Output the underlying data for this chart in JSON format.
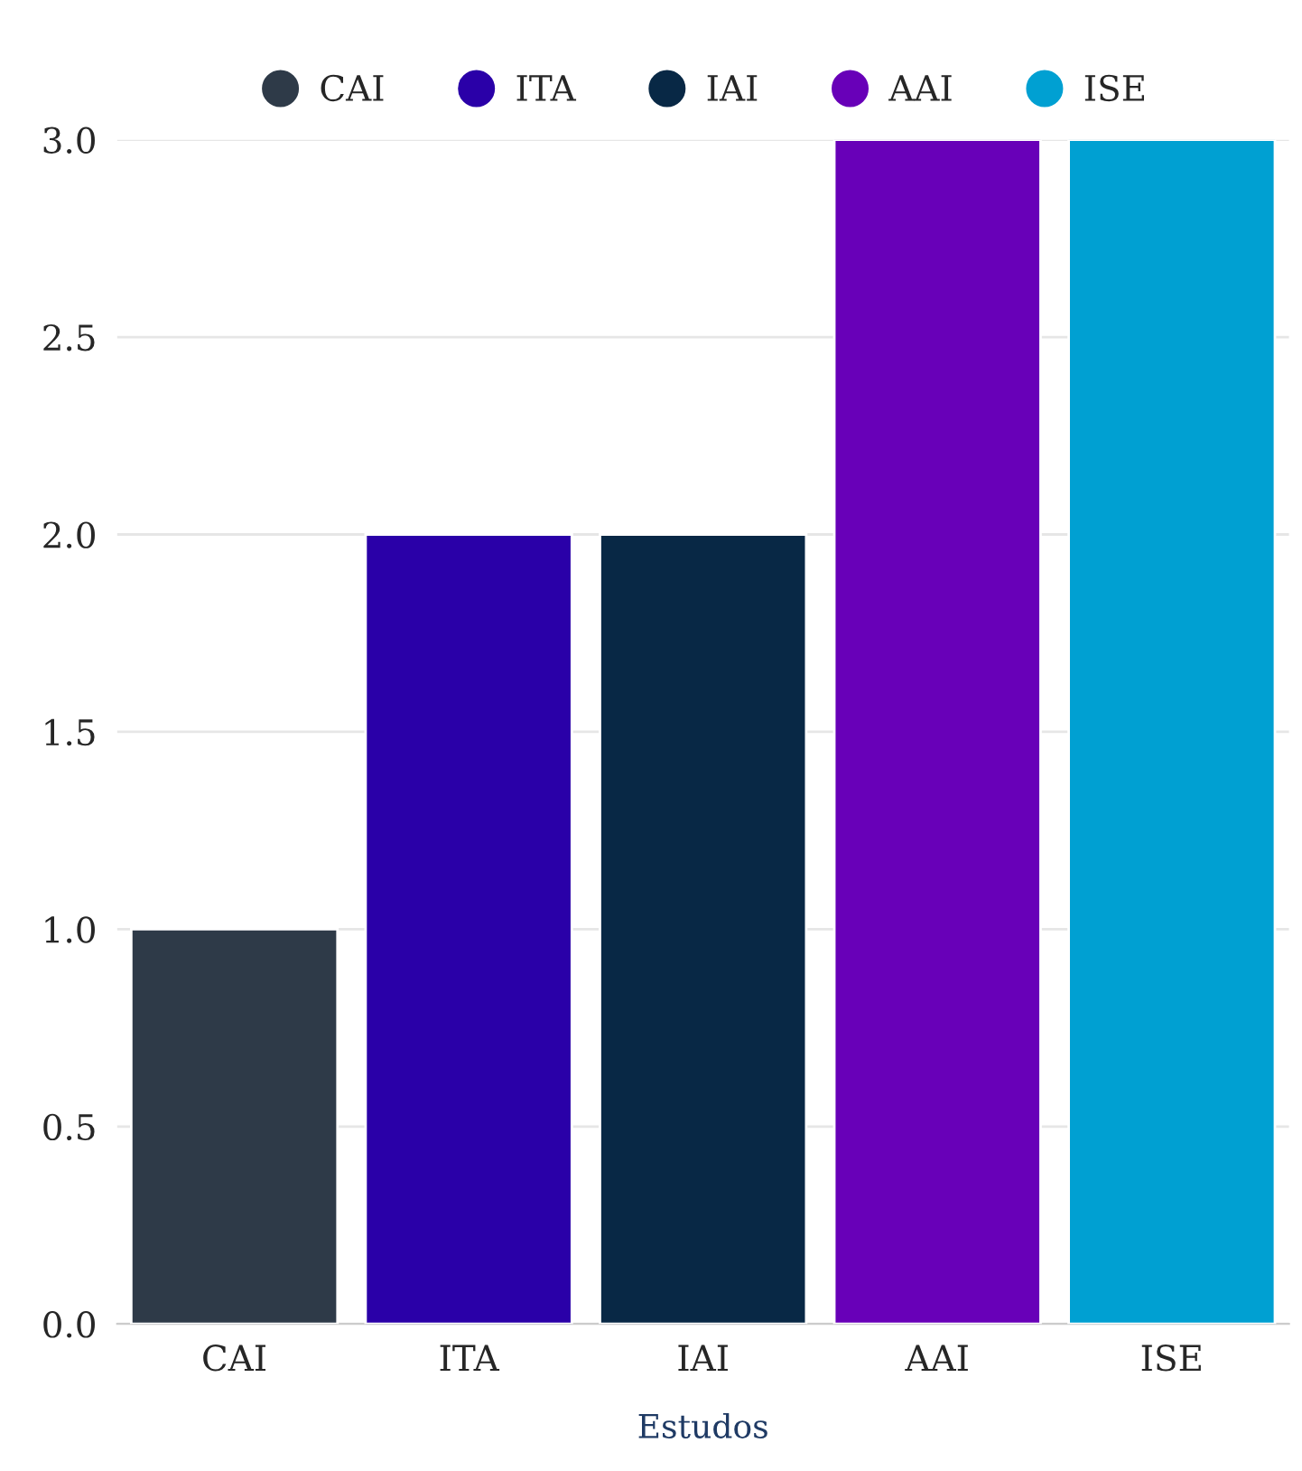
{
  "chart_data": {
    "type": "bar",
    "xlabel": "Estudos",
    "categories": [
      "CAI",
      "ITA",
      "IAI",
      "AAI",
      "ISE"
    ],
    "series": [
      {
        "name": "CAI",
        "color": "#2e3a48",
        "values": [
          1,
          null,
          null,
          null,
          null
        ]
      },
      {
        "name": "ITA",
        "color": "#2a00a8",
        "values": [
          null,
          2,
          null,
          null,
          null
        ]
      },
      {
        "name": "IAI",
        "color": "#082845",
        "values": [
          null,
          null,
          2,
          null,
          null
        ]
      },
      {
        "name": "AAI",
        "color": "#6800b8",
        "values": [
          null,
          null,
          null,
          3,
          null
        ]
      },
      {
        "name": "ISE",
        "color": "#00a0d2",
        "values": [
          null,
          null,
          null,
          null,
          3
        ]
      }
    ],
    "ylim": [
      0,
      3
    ],
    "yticks": [
      {
        "value": 0,
        "label": "0.0"
      },
      {
        "value": 0.5,
        "label": "0.5"
      },
      {
        "value": 1,
        "label": "1.0"
      },
      {
        "value": 1.5,
        "label": "1.5"
      },
      {
        "value": 2,
        "label": "2.0"
      },
      {
        "value": 2.5,
        "label": "2.5"
      },
      {
        "value": 3,
        "label": "3.0"
      }
    ],
    "grid": "y",
    "legend": "top"
  }
}
